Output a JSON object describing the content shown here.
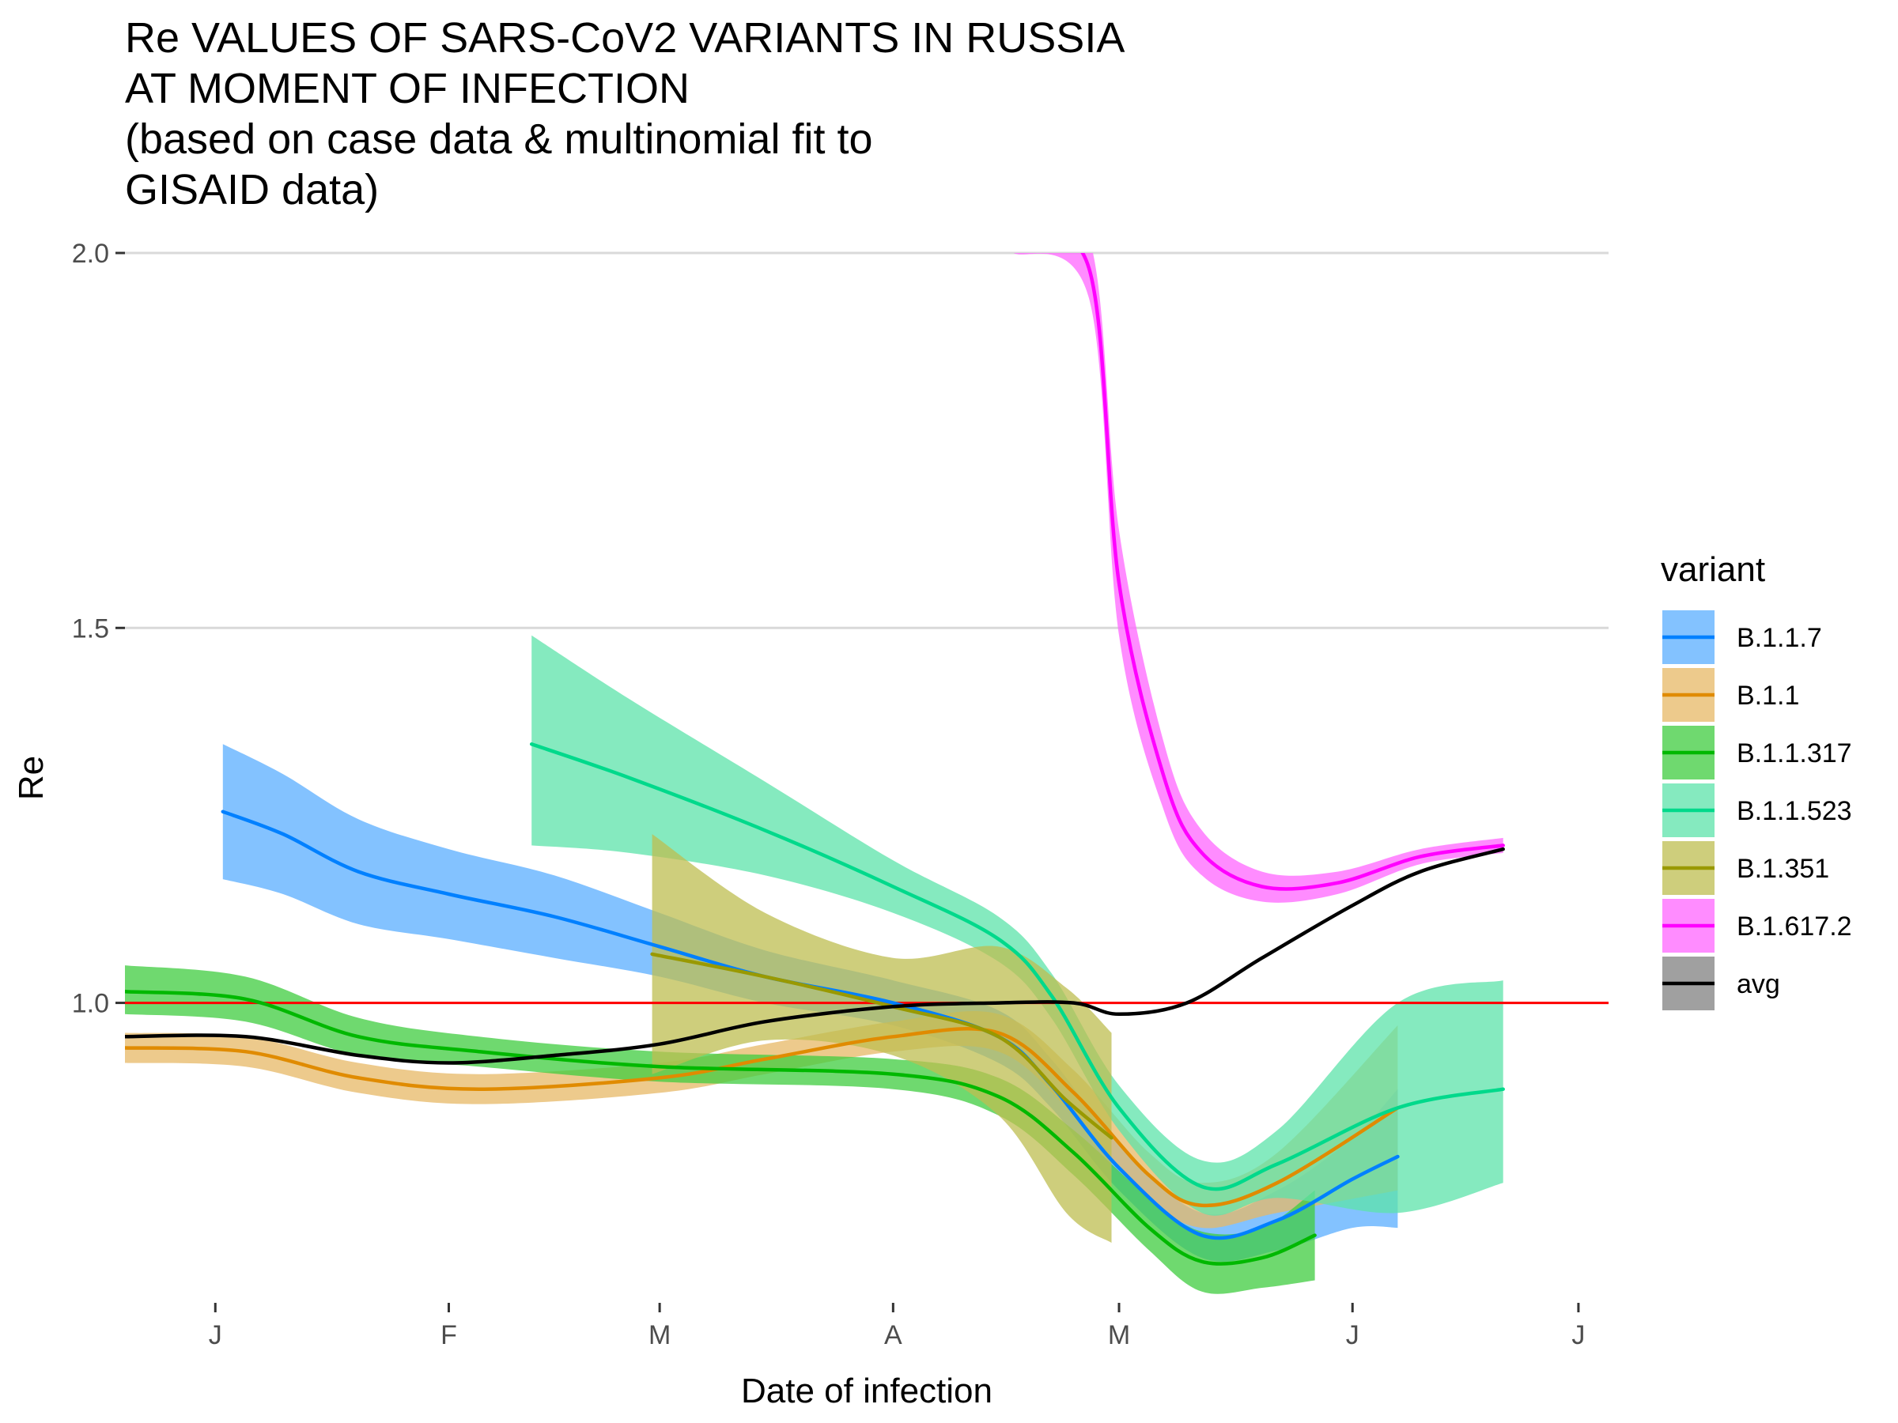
{
  "chart_data": {
    "type": "line",
    "title": "Re VALUES OF SARS-CoV2 VARIANTS IN RUSSIA\nAT MOMENT OF INFECTION\n(based on case data & multinomial fit to\nGISAID data)",
    "xlabel": "Date of infection",
    "ylabel": "Re",
    "x_ticks": [
      {
        "date": "2021-01-01",
        "label": "J"
      },
      {
        "date": "2021-02-01",
        "label": "F"
      },
      {
        "date": "2021-03-01",
        "label": "M"
      },
      {
        "date": "2021-04-01",
        "label": "A"
      },
      {
        "date": "2021-05-01",
        "label": "M"
      },
      {
        "date": "2021-06-01",
        "label": "J"
      },
      {
        "date": "2021-07-01",
        "label": "J"
      }
    ],
    "xlim": [
      "2020-12-20",
      "2021-07-05"
    ],
    "y_ticks": [
      1.0,
      1.5,
      2.0
    ],
    "ylim": [
      0.6,
      2.0
    ],
    "grid": "horizontal major",
    "reference_line": {
      "y": 1.0,
      "color": "#ff0000"
    },
    "legend": {
      "title": "variant",
      "position": "right"
    },
    "series": [
      {
        "name": "B.1.1.7",
        "color": "#0080ff",
        "fill": "#5aaeff",
        "points": [
          {
            "x": "2021-01-02",
            "y": 1.255,
            "lo": 1.165,
            "hi": 1.345
          },
          {
            "x": "2021-01-10",
            "y": 1.225,
            "lo": 1.145,
            "hi": 1.305
          },
          {
            "x": "2021-01-20",
            "y": 1.175,
            "lo": 1.105,
            "hi": 1.245
          },
          {
            "x": "2021-02-01",
            "y": 1.145,
            "lo": 1.085,
            "hi": 1.205
          },
          {
            "x": "2021-02-15",
            "y": 1.115,
            "lo": 1.06,
            "hi": 1.17
          },
          {
            "x": "2021-03-01",
            "y": 1.075,
            "lo": 1.035,
            "hi": 1.12
          },
          {
            "x": "2021-03-15",
            "y": 1.035,
            "lo": 1.0,
            "hi": 1.07
          },
          {
            "x": "2021-04-01",
            "y": 1.0,
            "lo": 0.97,
            "hi": 1.03
          },
          {
            "x": "2021-04-15",
            "y": 0.955,
            "lo": 0.92,
            "hi": 0.99
          },
          {
            "x": "2021-04-22",
            "y": 0.89,
            "lo": 0.86,
            "hi": 0.925
          },
          {
            "x": "2021-05-01",
            "y": 0.78,
            "lo": 0.75,
            "hi": 0.81
          },
          {
            "x": "2021-05-12",
            "y": 0.69,
            "lo": 0.66,
            "hi": 0.72
          },
          {
            "x": "2021-05-22",
            "y": 0.71,
            "lo": 0.67,
            "hi": 0.75
          },
          {
            "x": "2021-06-01",
            "y": 0.765,
            "lo": 0.7,
            "hi": 0.82
          },
          {
            "x": "2021-06-07",
            "y": 0.795,
            "lo": 0.7,
            "hi": 0.885
          }
        ]
      },
      {
        "name": "B.1.1",
        "color": "#e08b00",
        "fill": "#e7b865",
        "points": [
          {
            "x": "2020-12-20",
            "y": 0.94,
            "lo": 0.92,
            "hi": 0.96
          },
          {
            "x": "2021-01-05",
            "y": 0.935,
            "lo": 0.915,
            "hi": 0.955
          },
          {
            "x": "2021-01-20",
            "y": 0.9,
            "lo": 0.88,
            "hi": 0.92
          },
          {
            "x": "2021-02-05",
            "y": 0.885,
            "lo": 0.865,
            "hi": 0.905
          },
          {
            "x": "2021-03-01",
            "y": 0.9,
            "lo": 0.88,
            "hi": 0.92
          },
          {
            "x": "2021-03-15",
            "y": 0.925,
            "lo": 0.905,
            "hi": 0.945
          },
          {
            "x": "2021-04-01",
            "y": 0.955,
            "lo": 0.935,
            "hi": 0.975
          },
          {
            "x": "2021-04-15",
            "y": 0.96,
            "lo": 0.935,
            "hi": 0.985
          },
          {
            "x": "2021-04-25",
            "y": 0.88,
            "lo": 0.85,
            "hi": 0.91
          },
          {
            "x": "2021-05-05",
            "y": 0.77,
            "lo": 0.74,
            "hi": 0.8
          },
          {
            "x": "2021-05-12",
            "y": 0.73,
            "lo": 0.7,
            "hi": 0.76
          },
          {
            "x": "2021-05-22",
            "y": 0.76,
            "lo": 0.72,
            "hi": 0.8
          },
          {
            "x": "2021-06-07",
            "y": 0.86,
            "lo": 0.75,
            "hi": 0.97
          }
        ]
      },
      {
        "name": "B.1.1.317",
        "color": "#00b800",
        "fill": "#3fcc3f",
        "points": [
          {
            "x": "2020-12-20",
            "y": 1.015,
            "lo": 0.985,
            "hi": 1.05
          },
          {
            "x": "2021-01-05",
            "y": 1.005,
            "lo": 0.975,
            "hi": 1.035
          },
          {
            "x": "2021-01-20",
            "y": 0.955,
            "lo": 0.93,
            "hi": 0.98
          },
          {
            "x": "2021-02-05",
            "y": 0.935,
            "lo": 0.915,
            "hi": 0.955
          },
          {
            "x": "2021-03-01",
            "y": 0.915,
            "lo": 0.895,
            "hi": 0.935
          },
          {
            "x": "2021-04-01",
            "y": 0.905,
            "lo": 0.885,
            "hi": 0.925
          },
          {
            "x": "2021-04-15",
            "y": 0.875,
            "lo": 0.85,
            "hi": 0.9
          },
          {
            "x": "2021-04-25",
            "y": 0.8,
            "lo": 0.77,
            "hi": 0.83
          },
          {
            "x": "2021-05-05",
            "y": 0.7,
            "lo": 0.67,
            "hi": 0.74
          },
          {
            "x": "2021-05-12",
            "y": 0.655,
            "lo": 0.615,
            "hi": 0.695
          },
          {
            "x": "2021-05-20",
            "y": 0.66,
            "lo": 0.62,
            "hi": 0.7
          },
          {
            "x": "2021-05-27",
            "y": 0.69,
            "lo": 0.63,
            "hi": 0.75
          }
        ]
      },
      {
        "name": "B.1.1.523",
        "color": "#00d98b",
        "fill": "#5ce3aa",
        "points": [
          {
            "x": "2021-02-12",
            "y": 1.345,
            "lo": 1.21,
            "hi": 1.49
          },
          {
            "x": "2021-02-25",
            "y": 1.3,
            "lo": 1.2,
            "hi": 1.405
          },
          {
            "x": "2021-03-15",
            "y": 1.23,
            "lo": 1.17,
            "hi": 1.295
          },
          {
            "x": "2021-04-01",
            "y": 1.155,
            "lo": 1.12,
            "hi": 1.19
          },
          {
            "x": "2021-04-15",
            "y": 1.085,
            "lo": 1.055,
            "hi": 1.115
          },
          {
            "x": "2021-04-22",
            "y": 1.01,
            "lo": 0.98,
            "hi": 1.04
          },
          {
            "x": "2021-05-01",
            "y": 0.86,
            "lo": 0.83,
            "hi": 0.89
          },
          {
            "x": "2021-05-12",
            "y": 0.755,
            "lo": 0.72,
            "hi": 0.79
          },
          {
            "x": "2021-05-22",
            "y": 0.785,
            "lo": 0.74,
            "hi": 0.83
          },
          {
            "x": "2021-06-07",
            "y": 0.86,
            "lo": 0.72,
            "hi": 1.0
          },
          {
            "x": "2021-06-21",
            "y": 0.885,
            "lo": 0.76,
            "hi": 1.03
          }
        ]
      },
      {
        "name": "B.1.351",
        "color": "#999900",
        "fill": "#bdbd50",
        "points": [
          {
            "x": "2021-02-28",
            "y": 1.065,
            "lo": 0.905,
            "hi": 1.225
          },
          {
            "x": "2021-03-15",
            "y": 1.035,
            "lo": 0.95,
            "hi": 1.12
          },
          {
            "x": "2021-04-01",
            "y": 0.995,
            "lo": 0.93,
            "hi": 1.06
          },
          {
            "x": "2021-04-15",
            "y": 0.955,
            "lo": 0.85,
            "hi": 1.075
          },
          {
            "x": "2021-04-24",
            "y": 0.87,
            "lo": 0.72,
            "hi": 1.02
          },
          {
            "x": "2021-04-30",
            "y": 0.82,
            "lo": 0.68,
            "hi": 0.96
          }
        ]
      },
      {
        "name": "B.1.617.2",
        "color": "#ff00ff",
        "fill": "#ff66ff",
        "points": [
          {
            "x": "2021-04-17",
            "y": 2.02,
            "lo": 2.0,
            "hi": 2.04
          },
          {
            "x": "2021-04-27",
            "y": 1.98,
            "lo": 1.94,
            "hi": 2.02
          },
          {
            "x": "2021-05-01",
            "y": 1.56,
            "lo": 1.49,
            "hi": 1.63
          },
          {
            "x": "2021-05-07",
            "y": 1.3,
            "lo": 1.255,
            "hi": 1.345
          },
          {
            "x": "2021-05-12",
            "y": 1.2,
            "lo": 1.17,
            "hi": 1.23
          },
          {
            "x": "2021-05-20",
            "y": 1.155,
            "lo": 1.135,
            "hi": 1.175
          },
          {
            "x": "2021-05-30",
            "y": 1.16,
            "lo": 1.145,
            "hi": 1.175
          },
          {
            "x": "2021-06-10",
            "y": 1.195,
            "lo": 1.185,
            "hi": 1.205
          },
          {
            "x": "2021-06-21",
            "y": 1.21,
            "lo": 1.2,
            "hi": 1.22
          }
        ]
      },
      {
        "name": "avg",
        "color": "#000000",
        "fill": "#808080",
        "points": [
          {
            "x": "2020-12-20",
            "y": 0.955
          },
          {
            "x": "2021-01-05",
            "y": 0.955
          },
          {
            "x": "2021-01-20",
            "y": 0.93
          },
          {
            "x": "2021-02-01",
            "y": 0.92
          },
          {
            "x": "2021-02-15",
            "y": 0.93
          },
          {
            "x": "2021-03-01",
            "y": 0.945
          },
          {
            "x": "2021-03-15",
            "y": 0.975
          },
          {
            "x": "2021-04-01",
            "y": 0.995
          },
          {
            "x": "2021-04-15",
            "y": 1.0
          },
          {
            "x": "2021-04-25",
            "y": 1.0
          },
          {
            "x": "2021-05-01",
            "y": 0.985
          },
          {
            "x": "2021-05-10",
            "y": 1.0
          },
          {
            "x": "2021-05-20",
            "y": 1.06
          },
          {
            "x": "2021-06-01",
            "y": 1.13
          },
          {
            "x": "2021-06-10",
            "y": 1.175
          },
          {
            "x": "2021-06-21",
            "y": 1.205
          }
        ]
      }
    ]
  }
}
